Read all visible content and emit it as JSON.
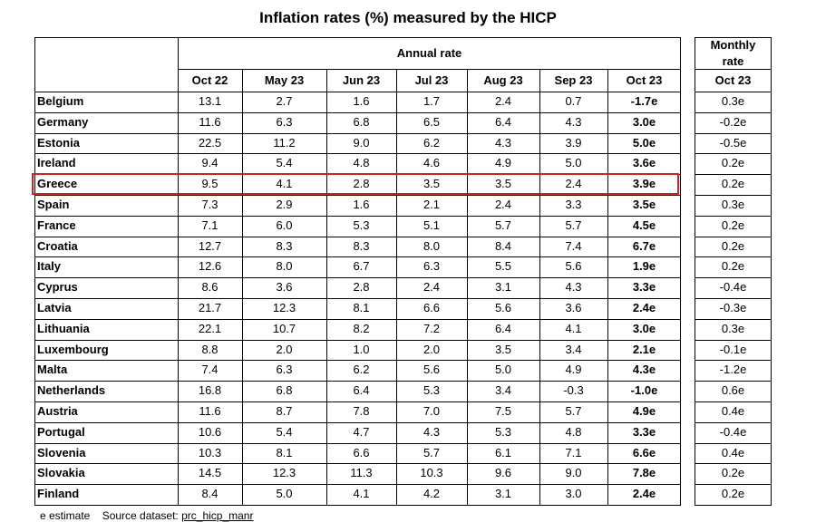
{
  "title": "Inflation rates (%) measured by the HICP",
  "annual_header": "Annual rate",
  "monthly_header_line1": "Monthly",
  "monthly_header_line2": "rate",
  "columns": [
    "Oct 22",
    "May 23",
    "Jun 23",
    "Jul 23",
    "Aug 23",
    "Sep 23",
    "Oct 23"
  ],
  "monthly_column": "Oct 23",
  "rows": [
    {
      "country": "Belgium",
      "values": [
        "13.1",
        "2.7",
        "1.6",
        "1.7",
        "2.4",
        "0.7",
        "-1.7e"
      ],
      "monthly": "0.3e"
    },
    {
      "country": "Germany",
      "values": [
        "11.6",
        "6.3",
        "6.8",
        "6.5",
        "6.4",
        "4.3",
        "3.0e"
      ],
      "monthly": "-0.2e"
    },
    {
      "country": "Estonia",
      "values": [
        "22.5",
        "11.2",
        "9.0",
        "6.2",
        "4.3",
        "3.9",
        "5.0e"
      ],
      "monthly": "-0.5e"
    },
    {
      "country": "Ireland",
      "values": [
        "9.4",
        "5.4",
        "4.8",
        "4.6",
        "4.9",
        "5.0",
        "3.6e"
      ],
      "monthly": "0.2e"
    },
    {
      "country": "Greece",
      "values": [
        "9.5",
        "4.1",
        "2.8",
        "3.5",
        "3.5",
        "2.4",
        "3.9e"
      ],
      "monthly": "0.2e"
    },
    {
      "country": "Spain",
      "values": [
        "7.3",
        "2.9",
        "1.6",
        "2.1",
        "2.4",
        "3.3",
        "3.5e"
      ],
      "monthly": "0.3e"
    },
    {
      "country": "France",
      "values": [
        "7.1",
        "6.0",
        "5.3",
        "5.1",
        "5.7",
        "5.7",
        "4.5e"
      ],
      "monthly": "0.2e"
    },
    {
      "country": "Croatia",
      "values": [
        "12.7",
        "8.3",
        "8.3",
        "8.0",
        "8.4",
        "7.4",
        "6.7e"
      ],
      "monthly": "0.2e"
    },
    {
      "country": "Italy",
      "values": [
        "12.6",
        "8.0",
        "6.7",
        "6.3",
        "5.5",
        "5.6",
        "1.9e"
      ],
      "monthly": "0.2e"
    },
    {
      "country": "Cyprus",
      "values": [
        "8.6",
        "3.6",
        "2.8",
        "2.4",
        "3.1",
        "4.3",
        "3.3e"
      ],
      "monthly": "-0.4e"
    },
    {
      "country": "Latvia",
      "values": [
        "21.7",
        "12.3",
        "8.1",
        "6.6",
        "5.6",
        "3.6",
        "2.4e"
      ],
      "monthly": "-0.3e"
    },
    {
      "country": "Lithuania",
      "values": [
        "22.1",
        "10.7",
        "8.2",
        "7.2",
        "6.4",
        "4.1",
        "3.0e"
      ],
      "monthly": "0.3e"
    },
    {
      "country": "Luxembourg",
      "values": [
        "8.8",
        "2.0",
        "1.0",
        "2.0",
        "3.5",
        "3.4",
        "2.1e"
      ],
      "monthly": "-0.1e"
    },
    {
      "country": "Malta",
      "values": [
        "7.4",
        "6.3",
        "6.2",
        "5.6",
        "5.0",
        "4.9",
        "4.3e"
      ],
      "monthly": "-1.2e"
    },
    {
      "country": "Netherlands",
      "values": [
        "16.8",
        "6.8",
        "6.4",
        "5.3",
        "3.4",
        "-0.3",
        "-1.0e"
      ],
      "monthly": "0.6e"
    },
    {
      "country": "Austria",
      "values": [
        "11.6",
        "8.7",
        "7.8",
        "7.0",
        "7.5",
        "5.7",
        "4.9e"
      ],
      "monthly": "0.4e"
    },
    {
      "country": "Portugal",
      "values": [
        "10.6",
        "5.4",
        "4.7",
        "4.3",
        "5.3",
        "4.8",
        "3.3e"
      ],
      "monthly": "-0.4e"
    },
    {
      "country": "Slovenia",
      "values": [
        "10.3",
        "8.1",
        "6.6",
        "5.7",
        "6.1",
        "7.1",
        "6.6e"
      ],
      "monthly": "0.4e"
    },
    {
      "country": "Slovakia",
      "values": [
        "14.5",
        "12.3",
        "11.3",
        "10.3",
        "9.6",
        "9.0",
        "7.8e"
      ],
      "monthly": "0.2e"
    },
    {
      "country": "Finland",
      "values": [
        "8.4",
        "5.0",
        "4.1",
        "4.2",
        "3.1",
        "3.0",
        "2.4e"
      ],
      "monthly": "0.2e"
    }
  ],
  "highlight_country": "Greece",
  "highlight_color": "#cc2222",
  "footer": {
    "estimate_note": "e estimate",
    "source_label": "Source dataset:",
    "source_dataset": "prc_hicp_manr"
  }
}
